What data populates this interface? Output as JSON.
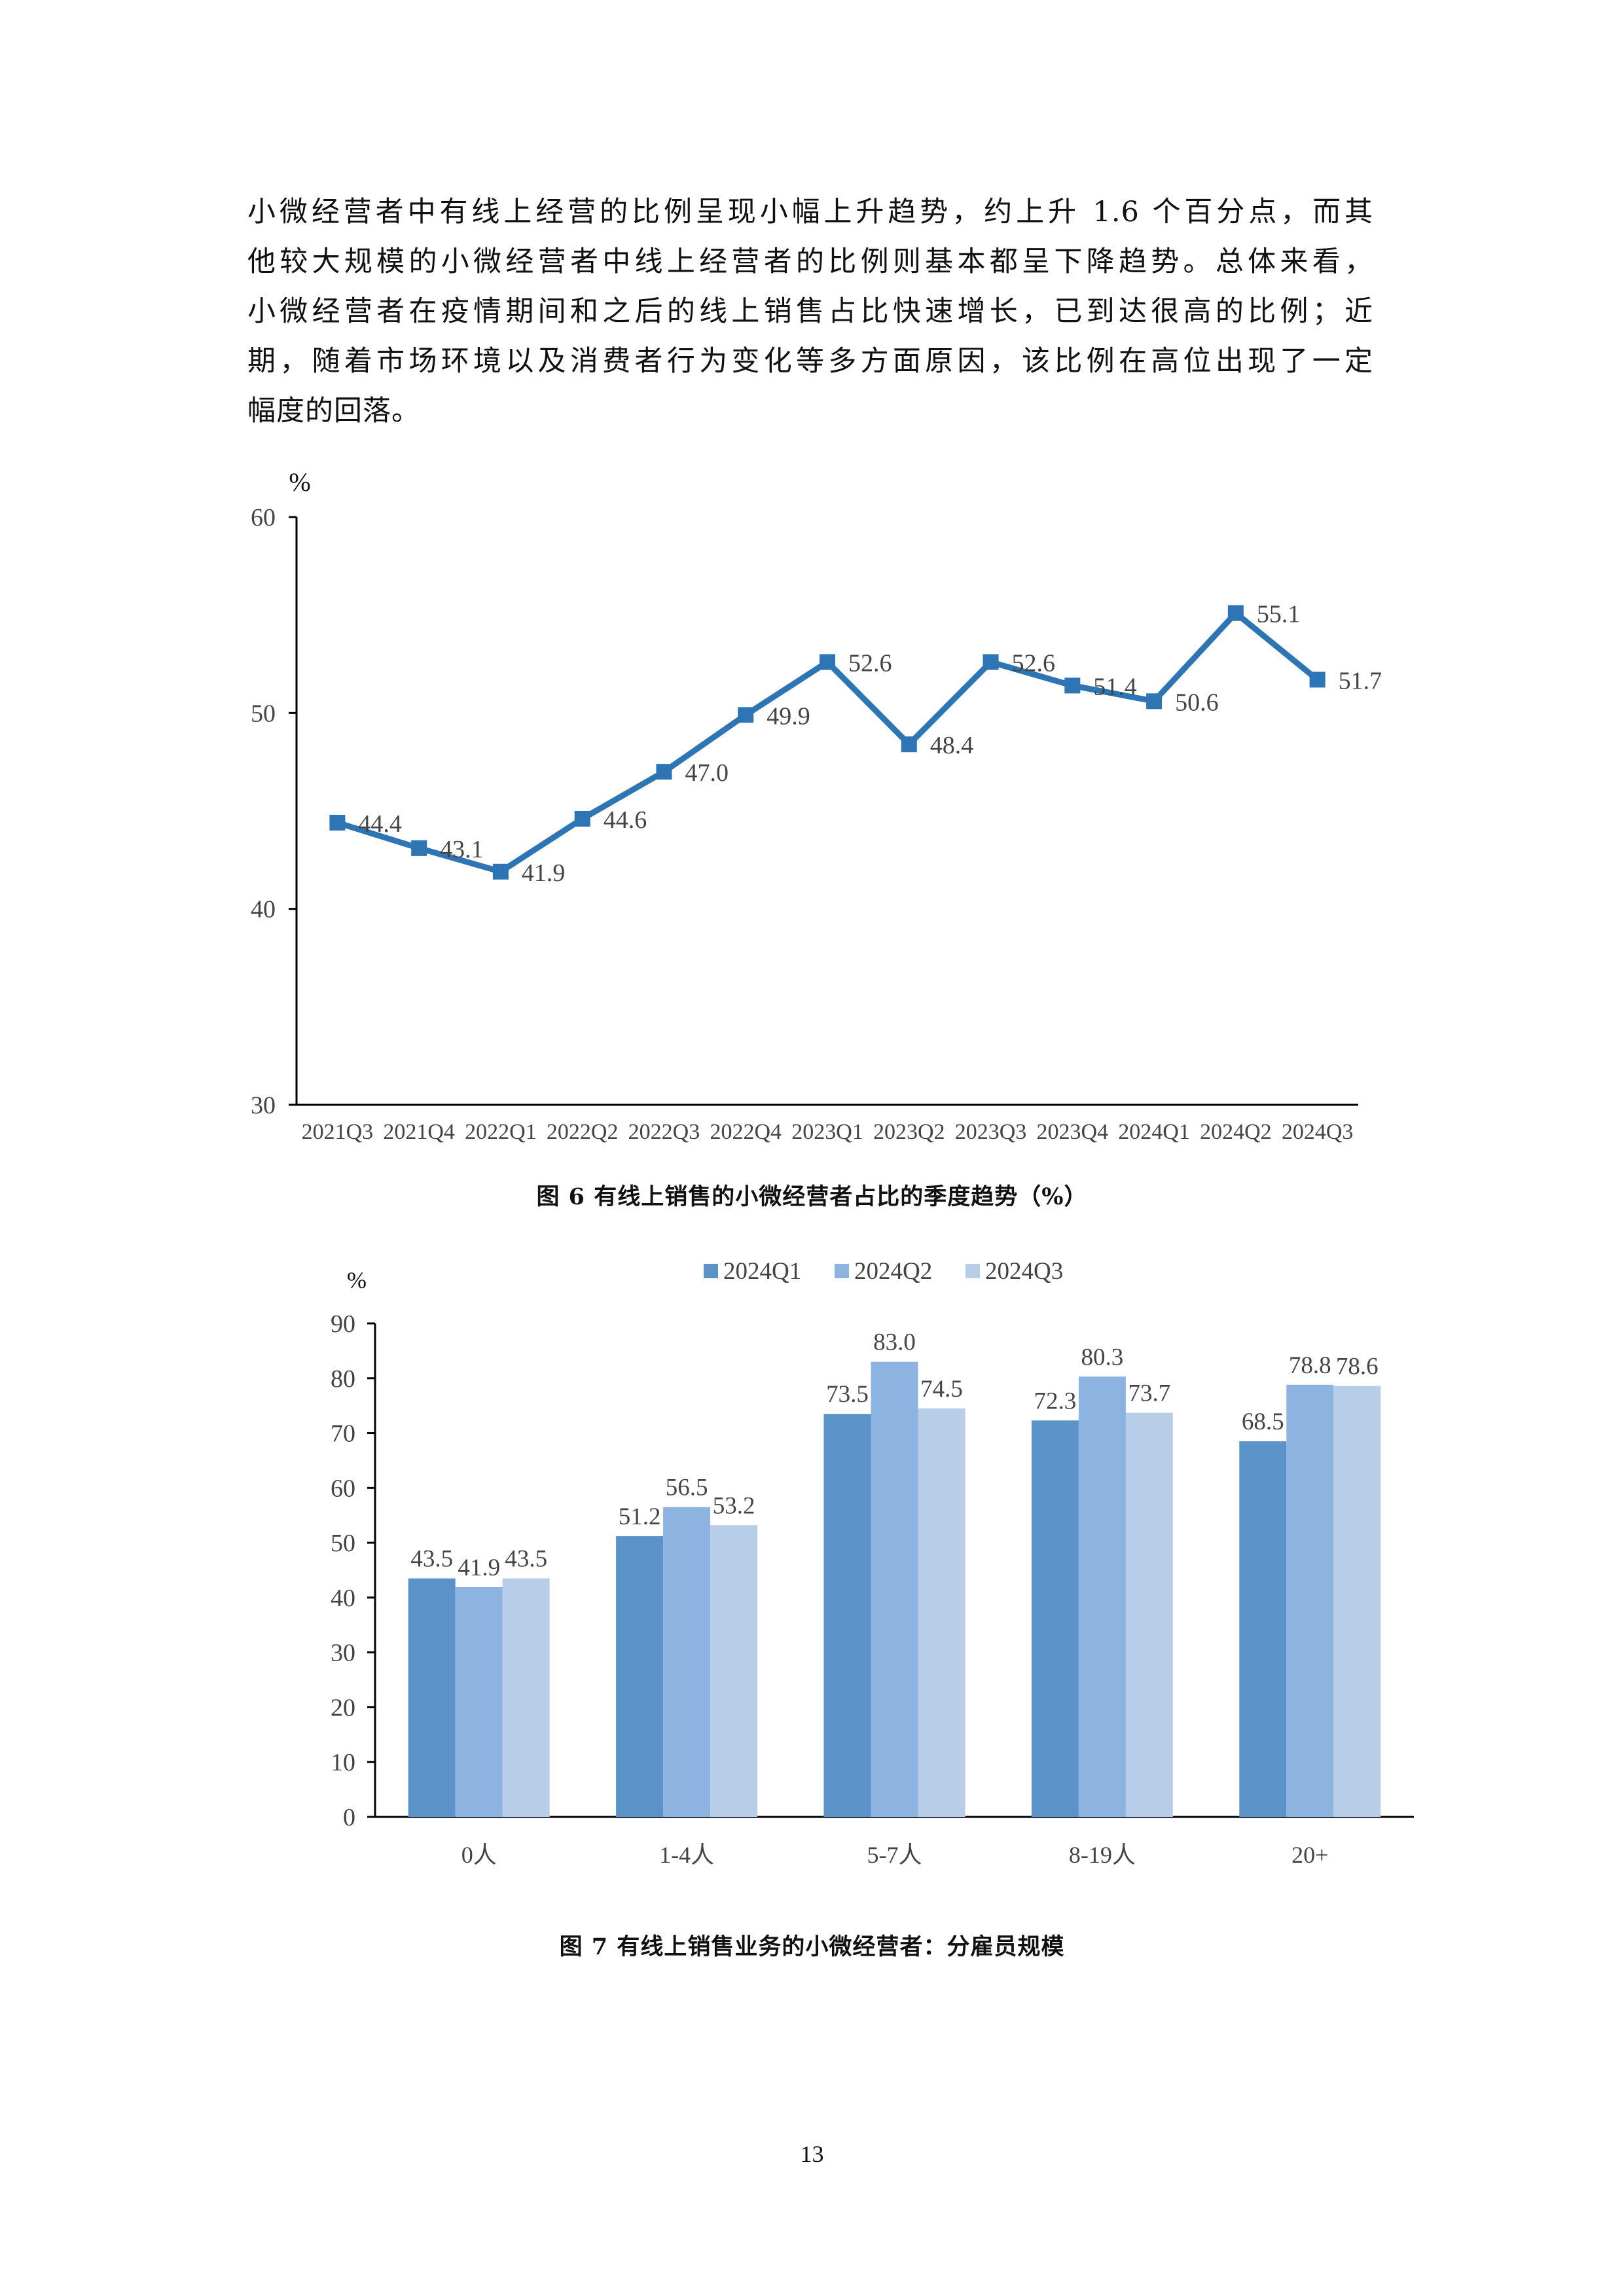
{
  "paragraph": {
    "lines": [
      "小微经营者中有线上经营的比例呈现小幅上升趋势，约上升 1.6 个百分点，而其",
      "他较大规模的小微经营者中线上经营者的比例则基本都呈下降趋势。总体来看，",
      "小微经营者在疫情期间和之后的线上销售占比快速增长，已到达很高的比例；近",
      "期，随着市场环境以及消费者行为变化等多方面原因，该比例在高位出现了一定",
      "幅度的回落。"
    ]
  },
  "colors": {
    "line": "#2E75B6",
    "q1": "#5B93C9",
    "q2": "#8DB3E0",
    "q3": "#B8CDE8",
    "axis": "#000000"
  },
  "chart_data": [
    {
      "type": "line",
      "unit_label": "%",
      "categories": [
        "2021Q3",
        "2021Q4",
        "2022Q1",
        "2022Q2",
        "2022Q3",
        "2022Q4",
        "2023Q1",
        "2023Q2",
        "2023Q3",
        "2023Q4",
        "2024Q1",
        "2024Q2",
        "2024Q3"
      ],
      "values": [
        44.4,
        43.1,
        41.9,
        44.6,
        47.0,
        49.9,
        52.6,
        48.4,
        52.6,
        51.4,
        50.6,
        55.1,
        51.7
      ],
      "data_labels": [
        "44.4",
        "43.1",
        "41.9",
        "44.6",
        "47.0",
        "49.9",
        "52.6",
        "48.4",
        "52.6",
        "51.4",
        "50.6",
        "55.1",
        "51.7"
      ],
      "ylim": [
        30,
        60
      ],
      "yticks": [
        "30",
        "40",
        "50",
        "60"
      ],
      "grid": false,
      "caption": "图 6 有线上销售的小微经营者占比的季度趋势（%）"
    },
    {
      "type": "bar",
      "unit_label": "%",
      "categories": [
        "0人",
        "1-4人",
        "5-7人",
        "8-19人",
        "20+"
      ],
      "series": [
        {
          "name": "2024Q1",
          "values": [
            43.5,
            51.2,
            73.5,
            72.3,
            68.5
          ],
          "labels": [
            "43.5",
            "51.2",
            "73.5",
            "72.3",
            "68.5"
          ]
        },
        {
          "name": "2024Q2",
          "values": [
            41.9,
            56.5,
            83.0,
            80.3,
            78.8
          ],
          "labels": [
            "41.9",
            "56.5",
            "83.0",
            "80.3",
            "78.8"
          ]
        },
        {
          "name": "2024Q3",
          "values": [
            43.5,
            53.2,
            74.5,
            73.7,
            78.6
          ],
          "labels": [
            "43.5",
            "53.2",
            "74.5",
            "73.7",
            "78.6"
          ]
        }
      ],
      "ylim": [
        0,
        90
      ],
      "yticks": [
        "0",
        "10",
        "20",
        "30",
        "40",
        "50",
        "60",
        "70",
        "80",
        "90"
      ],
      "legend": "top-center",
      "grid": false,
      "caption": "图 7 有线上销售业务的小微经营者：分雇员规模"
    }
  ],
  "page_number": "13"
}
